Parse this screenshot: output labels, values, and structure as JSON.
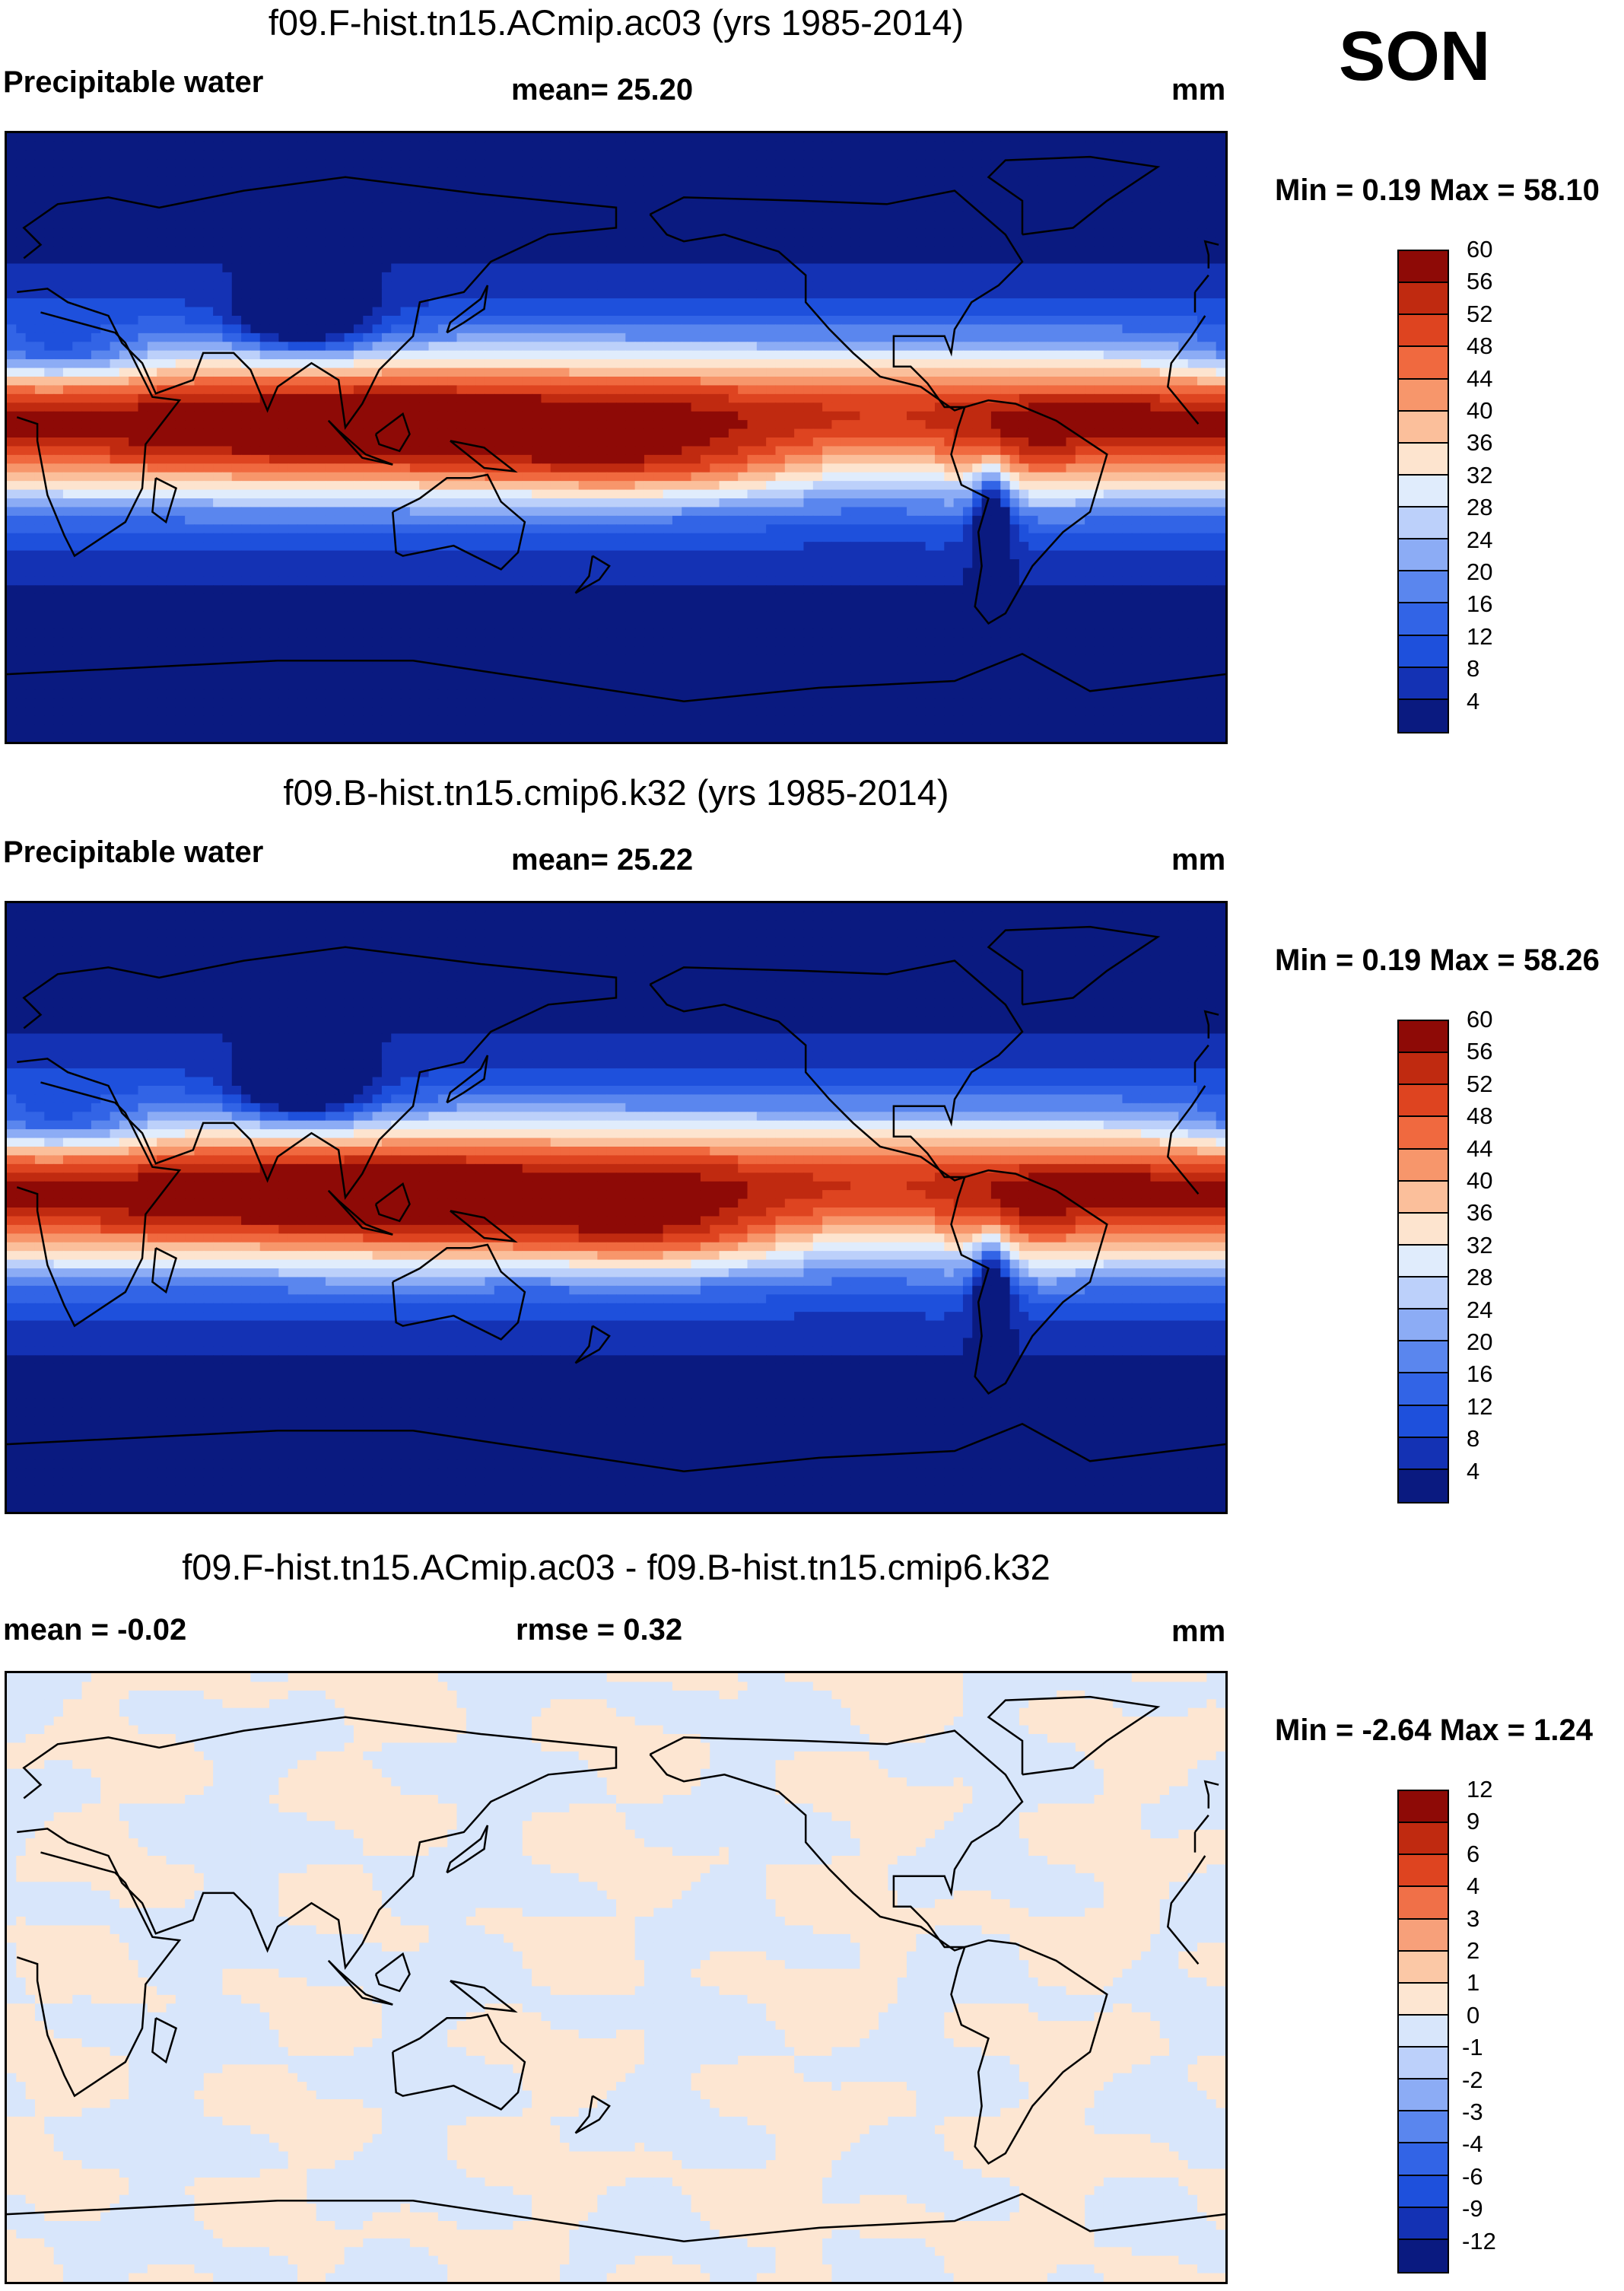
{
  "season": "SON",
  "colors": {
    "full": [
      "#0a1a80",
      "#1432b4",
      "#1e50dc",
      "#3264e6",
      "#5a86ee",
      "#8cacf5",
      "#bcd0fa",
      "#e0ecfc",
      "#fde4cf",
      "#fbbf9b",
      "#f7966b",
      "#f0693f",
      "#de4420",
      "#c02a10",
      "#8e0a06"
    ],
    "diff": [
      "#0a1a80",
      "#1432b4",
      "#1e50dc",
      "#3264e6",
      "#5a86ee",
      "#8cacf5",
      "#bcd0fa",
      "#d8e6fb",
      "#fde6d2",
      "#fbc8a6",
      "#f7a07a",
      "#f07048",
      "#de4420",
      "#c02a10",
      "#8e0a06"
    ],
    "coast": "#000000"
  },
  "panels": [
    {
      "title": "f09.F-hist.tn15.ACmip.ac03 (yrs 1985-2014)",
      "left_label": "Precipitable water",
      "center_label": "mean=  25.20",
      "units": "mm",
      "minmax": "Min =   0.19 Max =  58.10"
    },
    {
      "title": "f09.B-hist.tn15.cmip6.k32 (yrs 1985-2014)",
      "left_label": "Precipitable water",
      "center_label": "mean=  25.22",
      "units": "mm",
      "minmax": "Min =   0.19 Max =  58.26"
    },
    {
      "title": "f09.F-hist.tn15.ACmip.ac03 - f09.B-hist.tn15.cmip6.k32",
      "left_label": "mean =  -0.02",
      "center_label": "rmse =   0.32",
      "units": "mm",
      "minmax": "Min =  -2.64 Max =   1.24"
    }
  ],
  "chart_data": [
    {
      "type": "heatmap",
      "title": "f09.F-hist.tn15.ACmip.ac03 (yrs 1985-2014)",
      "variable": "Precipitable water",
      "units": "mm",
      "season": "SON",
      "mean": 25.2,
      "min": 0.19,
      "max": 58.1,
      "colorbar_levels": [
        4,
        8,
        12,
        16,
        20,
        24,
        28,
        32,
        36,
        40,
        44,
        48,
        52,
        56,
        60
      ],
      "xlim": [
        0,
        360
      ],
      "ylim": [
        -90,
        90
      ]
    },
    {
      "type": "heatmap",
      "title": "f09.B-hist.tn15.cmip6.k32 (yrs 1985-2014)",
      "variable": "Precipitable water",
      "units": "mm",
      "season": "SON",
      "mean": 25.22,
      "min": 0.19,
      "max": 58.26,
      "colorbar_levels": [
        4,
        8,
        12,
        16,
        20,
        24,
        28,
        32,
        36,
        40,
        44,
        48,
        52,
        56,
        60
      ],
      "xlim": [
        0,
        360
      ],
      "ylim": [
        -90,
        90
      ]
    },
    {
      "type": "heatmap",
      "title": "f09.F-hist.tn15.ACmip.ac03 - f09.B-hist.tn15.cmip6.k32",
      "units": "mm",
      "season": "SON",
      "mean": -0.02,
      "rmse": 0.32,
      "min": -2.64,
      "max": 1.24,
      "colorbar_levels": [
        -12,
        -9,
        -6,
        -4,
        -3,
        -2,
        -1,
        0,
        1,
        2,
        3,
        4,
        6,
        9,
        12
      ],
      "xlim": [
        0,
        360
      ],
      "ylim": [
        -90,
        90
      ]
    }
  ]
}
